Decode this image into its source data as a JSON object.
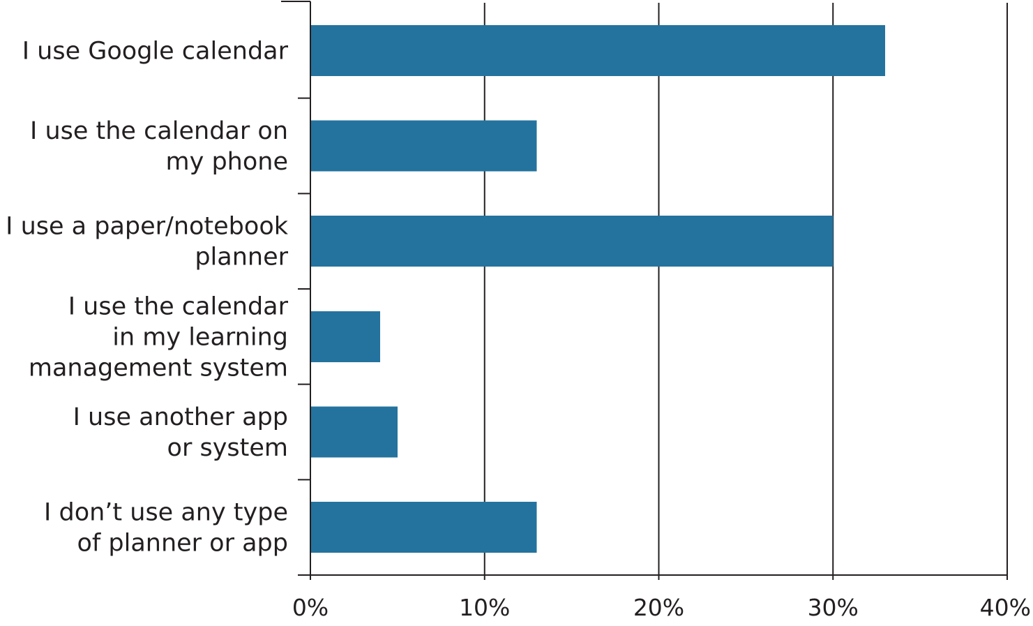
{
  "chart_data": {
    "type": "bar",
    "orientation": "horizontal",
    "title": "",
    "xlabel": "",
    "ylabel": "",
    "categories": [
      [
        "I use Google calendar"
      ],
      [
        "I use the calendar on",
        "my phone"
      ],
      [
        "I use a paper/notebook",
        "planner"
      ],
      [
        "I use the calendar",
        "in my learning",
        "management system"
      ],
      [
        "I use another app",
        "or system"
      ],
      [
        "I don’t use any type",
        "of planner or app"
      ]
    ],
    "values": [
      33,
      13,
      30,
      4,
      5,
      13
    ],
    "unit": "%",
    "xlim": [
      0,
      40
    ],
    "xticks": [
      0,
      10,
      20,
      30,
      40
    ],
    "xtick_labels": [
      "0%",
      "10%",
      "20%",
      "30%",
      "40%"
    ],
    "grid": true,
    "legend": "none",
    "bar_color": "#24739e"
  }
}
